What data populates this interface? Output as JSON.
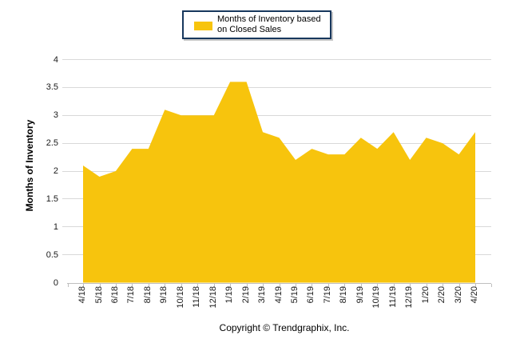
{
  "legend": {
    "label": "Months of Inventory based on Closed Sales",
    "swatch_color": "#f7c40d"
  },
  "footer": {
    "copyright": "Copyright © Trendgraphix, Inc."
  },
  "y_axis": {
    "title": "Months of Inventory",
    "tick_labels": [
      "0",
      "0.5",
      "1",
      "1.5",
      "2",
      "2.5",
      "3",
      "3.5",
      "4"
    ]
  },
  "chart_data": {
    "type": "area",
    "title": "",
    "categories": [
      "4/18",
      "5/18",
      "6/18",
      "7/18",
      "8/18",
      "9/18",
      "10/18",
      "11/18",
      "12/18",
      "1/19",
      "2/19",
      "3/19",
      "4/19",
      "5/19",
      "6/19",
      "7/19",
      "8/19",
      "9/19",
      "10/19",
      "11/19",
      "12/19",
      "1/20",
      "2/20",
      "3/20",
      "4/20"
    ],
    "series": [
      {
        "name": "Months of Inventory based on Closed Sales",
        "values": [
          2.1,
          1.9,
          2.0,
          2.4,
          2.4,
          3.1,
          3.0,
          3.0,
          3.0,
          3.6,
          3.6,
          2.7,
          2.6,
          2.2,
          2.4,
          2.3,
          2.3,
          2.6,
          2.4,
          2.7,
          2.2,
          2.6,
          2.5,
          2.3,
          2.7
        ]
      }
    ],
    "xlabel": "",
    "ylabel": "Months of Inventory",
    "ylim": [
      0,
      4
    ],
    "y_tick_step": 0.5,
    "grid": true,
    "legend_position": "top-center",
    "fill_color": "#f7c40d",
    "gridline_color": "#d9d9d9"
  },
  "colors": {
    "area_fill": "#f7c40d",
    "legend_border": "#17375d",
    "gridline": "#d9d9d9",
    "axis": "#bfbfbf",
    "text": "#000000"
  }
}
